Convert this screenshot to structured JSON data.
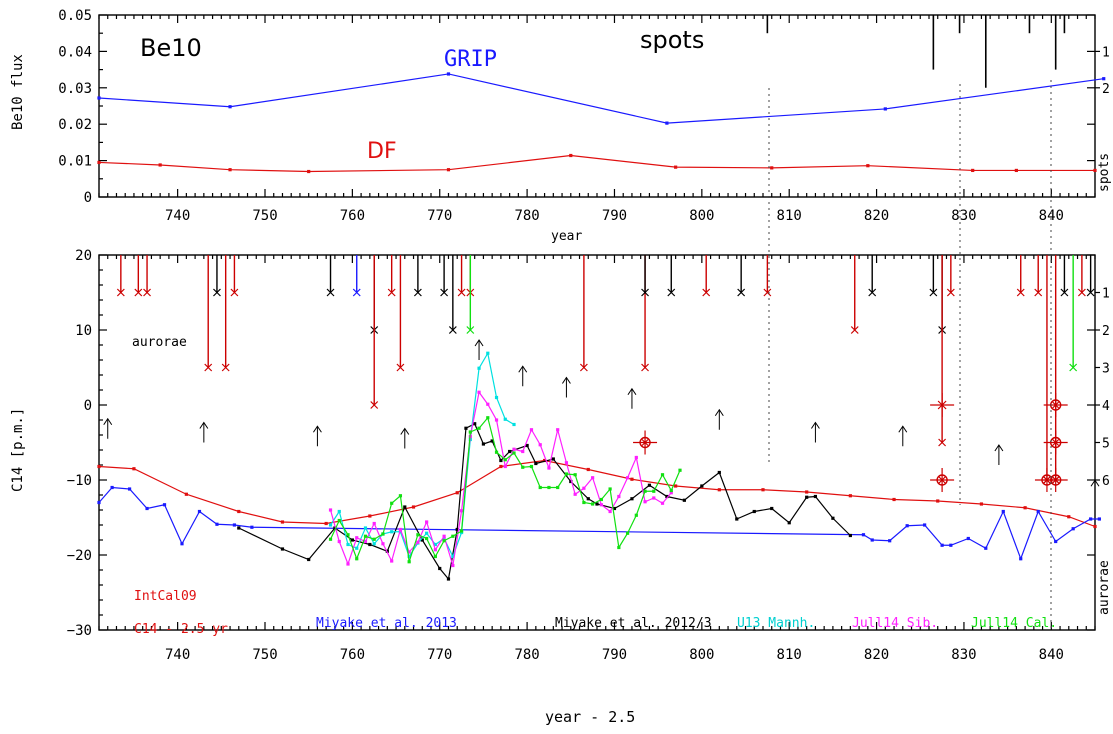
{
  "colors": {
    "grip": "#1a1aff",
    "df": "#e01010",
    "intcal": "#e01010",
    "miyake13": "#1a1aff",
    "miyake12": "#000000",
    "u13": "#00e0e0",
    "sib": "#ff20ff",
    "cal": "#10e010",
    "aurora_red": "#cc0000"
  },
  "top_panel": {
    "ylabel": "Be10 flux",
    "xlabel": "year",
    "right_label": "spots",
    "text_be10": "Be10",
    "text_spots": "spots",
    "text_grip": "GRIP",
    "text_df": "DF",
    "ytick_labels": [
      "0",
      "0.01",
      "0.02",
      "0.03",
      "0.04",
      "0.05"
    ],
    "right_tick_labels": [
      "1",
      "2"
    ]
  },
  "bottom_panel": {
    "ylabel": "C14 [p.m.]",
    "xlabel": "year - 2.5",
    "right_label": "aurorae",
    "text_aurorae": "aurorae",
    "ytick_labels": [
      "20",
      "10",
      "0",
      "−10",
      "−20",
      "−30"
    ],
    "right_tick_labels": [
      "1",
      "2",
      "3",
      "4",
      "5",
      "6"
    ],
    "legend": {
      "intcal": "IntCal09",
      "c14": "C14 - 2.5 yr",
      "miyake13": "Miyake et al. 2013",
      "miyake12": "Miyake et al. 2012/3",
      "u13": "U13 Mannh.",
      "sib": "Jull14 Sib.",
      "cal": "Jull14 Cal."
    }
  },
  "xtick_labels": [
    "740",
    "750",
    "760",
    "770",
    "780",
    "790",
    "800",
    "810",
    "820",
    "830",
    "840"
  ],
  "chart_data": [
    {
      "type": "line",
      "title": "",
      "xlabel": "year",
      "ylabel": "Be10 flux",
      "xlim": [
        731,
        845
      ],
      "ylim": [
        0,
        0.05
      ],
      "series": [
        {
          "name": "GRIP",
          "x": [
            731,
            746,
            771,
            796,
            821,
            846
          ],
          "y": [
            0.0272,
            0.0248,
            0.0338,
            0.0203,
            0.0242,
            0.0325
          ]
        },
        {
          "name": "DF",
          "x": [
            731,
            738,
            746,
            755,
            771,
            785,
            797,
            808,
            819,
            831,
            836,
            845
          ],
          "y": [
            0.0095,
            0.0088,
            0.0075,
            0.007,
            0.0075,
            0.0114,
            0.0082,
            0.008,
            0.0086,
            0.0073,
            0.0073,
            0.0073
          ]
        }
      ],
      "spots": [
        [
          807.5,
          1
        ],
        [
          826.5,
          3
        ],
        [
          829.5,
          1
        ],
        [
          832.5,
          4
        ],
        [
          837.5,
          1
        ],
        [
          840.5,
          3
        ],
        [
          841.5,
          1
        ]
      ]
    },
    {
      "type": "line",
      "title": "",
      "xlabel": "year - 2.5",
      "ylabel": "C14 [p.m.]",
      "xlim": [
        731,
        845
      ],
      "ylim": [
        -30,
        20
      ],
      "series": [
        {
          "name": "IntCal09",
          "x": [
            731,
            735,
            741,
            747,
            752,
            757,
            762,
            767,
            772,
            777,
            782,
            787,
            792,
            797,
            802,
            807,
            812,
            817,
            822,
            827,
            832,
            837,
            842,
            845
          ],
          "y": [
            -8.2,
            -8.5,
            -11.9,
            -14.2,
            -15.6,
            -15.8,
            -14.8,
            -13.6,
            -11.7,
            -8.2,
            -7.4,
            -8.6,
            -9.9,
            -10.8,
            -11.3,
            -11.3,
            -11.6,
            -12.1,
            -12.6,
            -12.8,
            -13.2,
            -13.7,
            -14.9,
            -16.2
          ]
        },
        {
          "name": "Miyake et al. 2013",
          "x": [
            731,
            732.5,
            734.5,
            736.5,
            738.5,
            740.5,
            742.5,
            744.5,
            746.5,
            748.5,
            818.5,
            819.5,
            821.5,
            823.5,
            825.5,
            827.5,
            828.5,
            830.5,
            832.5,
            834.5,
            836.5,
            838.5,
            840.5,
            842.5,
            844.5,
            845.5
          ],
          "y": [
            -13,
            -11,
            -11.2,
            -13.8,
            -13.3,
            -18.5,
            -14.2,
            -15.9,
            -16,
            -16.3,
            -17.3,
            -18,
            -18.1,
            -16.1,
            -16,
            -18.7,
            -18.7,
            -17.8,
            -19.1,
            -14.2,
            -20.5,
            -14.2,
            -18.2,
            -16.5,
            -15.2,
            -15.2
          ]
        },
        {
          "name": "Miyake et al. 2012/3",
          "x": [
            747,
            752,
            755,
            758,
            760,
            762,
            764,
            766,
            768,
            770,
            771,
            772,
            773,
            774,
            775,
            776,
            777,
            778,
            780,
            781,
            783,
            785,
            787,
            788,
            790,
            792,
            794,
            796,
            798,
            800,
            802,
            804,
            806,
            808,
            810,
            812,
            813,
            815,
            817
          ],
          "y": [
            -16.4,
            -19.2,
            -20.6,
            -16.4,
            -18,
            -18.6,
            -19.5,
            -13.6,
            -18,
            -21.8,
            -23.2,
            -16.6,
            -3.1,
            -2.5,
            -5.2,
            -4.8,
            -7.4,
            -6.2,
            -5.4,
            -7.8,
            -7.2,
            -10.2,
            -12.5,
            -13.2,
            -13.8,
            -12.5,
            -10.7,
            -12.2,
            -12.7,
            -10.8,
            -9,
            -15.2,
            -14.2,
            -13.8,
            -15.7,
            -12.3,
            -12.2,
            -15.1,
            -17.4
          ]
        },
        {
          "name": "U13 Mannh.",
          "x": [
            757.5,
            758.5,
            759.5,
            760.5,
            761.5,
            762.5,
            763.5,
            764.5,
            765.5,
            766.5,
            767.5,
            768.5,
            769.5,
            770.5,
            771.5,
            772.5,
            773.5,
            774.5,
            775.5,
            776.5,
            777.5,
            778.5
          ],
          "y": [
            -16,
            -14.2,
            -18.6,
            -19.1,
            -16.4,
            -18.5,
            -17.2,
            -16.9,
            -16.9,
            -20.2,
            -18.4,
            -17.1,
            -18.6,
            -17.8,
            -20.2,
            -17,
            -4.6,
            4.9,
            6.9,
            1,
            -1.9,
            -2.6
          ]
        },
        {
          "name": "Jull14 Sib.",
          "x": [
            757.5,
            758.5,
            759.5,
            760.5,
            761.5,
            762.5,
            763.5,
            764.5,
            765.5,
            766.5,
            767.5,
            768.5,
            769.5,
            770.5,
            771.5,
            772.5,
            773.5,
            774.5,
            775.5,
            776.5,
            777.5,
            778.5,
            779.5,
            780.5,
            781.5,
            782.5,
            783.5,
            784.5,
            785.5,
            786.5,
            787.5,
            788.5,
            789.5,
            790.5,
            791.5,
            792.5,
            793.5,
            794.5,
            795.5,
            796.5
          ],
          "y": [
            -14,
            -18.2,
            -21.2,
            -17.7,
            -18.2,
            -15.8,
            -18.5,
            -20.8,
            -16.6,
            -19.6,
            -18.3,
            -15.6,
            -19.3,
            -17.5,
            -21.4,
            -14.1,
            -4.2,
            1.7,
            0.1,
            -2,
            -8.2,
            -5.9,
            -6.2,
            -3.3,
            -5.3,
            -8.4,
            -3.3,
            -7.7,
            -11.9,
            -11.1,
            -9.7,
            -13.3,
            -14.2,
            -12.2,
            -9.7,
            -7,
            -12.9,
            -12.4,
            -13.1,
            -11.7
          ]
        },
        {
          "name": "Jull14 Cal.",
          "x": [
            757.5,
            758.5,
            759.5,
            760.5,
            761.5,
            762.5,
            763.5,
            764.5,
            765.5,
            766.5,
            767.5,
            768.5,
            769.5,
            770.5,
            771.5,
            772.5,
            773.5,
            774.5,
            775.5,
            776.5,
            777.5,
            778.5,
            779.5,
            780.5,
            781.5,
            782.5,
            783.5,
            784.5,
            785.5,
            786.5,
            787.5,
            788.5,
            789.5,
            790.5,
            791.5,
            792.5,
            793.5,
            794.5,
            795.5,
            796.5,
            797.5
          ],
          "y": [
            -17.9,
            -15.4,
            -17.3,
            -20.5,
            -17.5,
            -17.9,
            -17.2,
            -13.1,
            -12.1,
            -20.9,
            -17.3,
            -17.8,
            -20.2,
            -18.1,
            -17.5,
            -16.8,
            -3.6,
            -3.1,
            -1.7,
            -6.3,
            -7.3,
            -6.4,
            -8.3,
            -8.2,
            -11,
            -11,
            -11,
            -9.2,
            -9.3,
            -13,
            -13.2,
            -12.6,
            -11.2,
            -19,
            -17.1,
            -14.7,
            -11.5,
            -11.5,
            -9.3,
            -11.4,
            -8.7
          ]
        }
      ],
      "markers_circle_x": [
        [
          793.5,
          -5
        ],
        [
          827.5,
          -10
        ],
        [
          839.5,
          -10
        ],
        [
          840.5,
          -10
        ],
        [
          840.5,
          -5
        ],
        [
          840.5,
          0
        ]
      ],
      "markers_cross_plus": [
        [
          827.5,
          0
        ]
      ],
      "arrows_up": [
        [
          732,
          -4.5
        ],
        [
          743,
          -5
        ],
        [
          756,
          -5.5
        ],
        [
          766,
          -5.8
        ],
        [
          774.5,
          6
        ],
        [
          779.5,
          2.5
        ],
        [
          784.5,
          1
        ],
        [
          792,
          -0.5
        ],
        [
          802,
          -3.3
        ],
        [
          813,
          -5
        ],
        [
          823,
          -5.5
        ],
        [
          834,
          -8
        ],
        [
          845,
          -12.7
        ]
      ]
    }
  ]
}
